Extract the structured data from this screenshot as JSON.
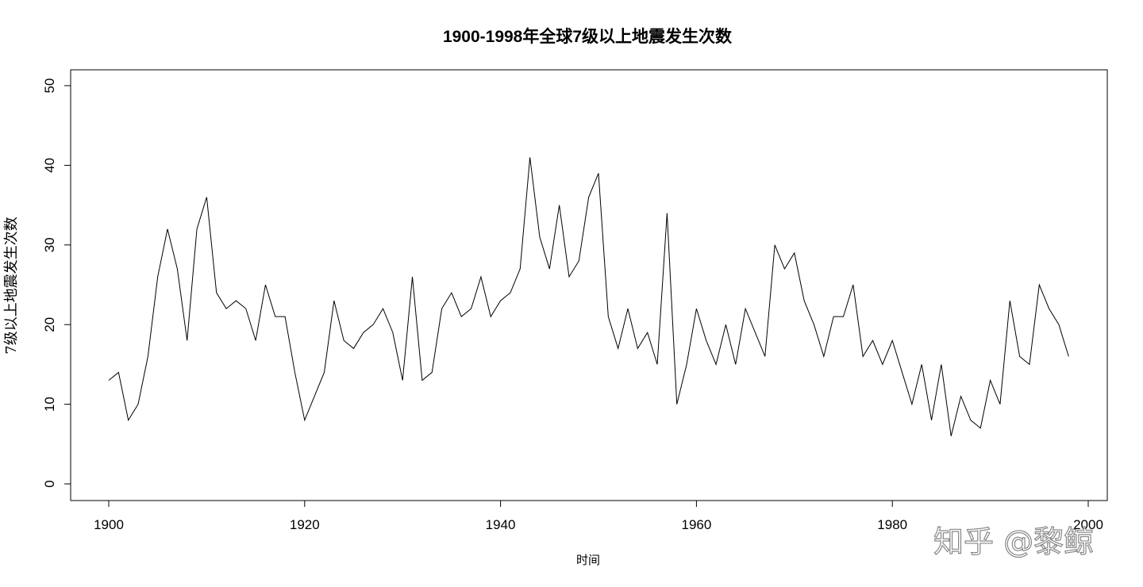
{
  "chart_data": {
    "type": "line",
    "title": "1900-1998年全球7级以上地震发生次数",
    "xlabel": "时间",
    "ylabel": "7级以上地震发生次数",
    "xlim": [
      1900,
      2000
    ],
    "ylim": [
      0,
      50
    ],
    "x_ticks": [
      "1900",
      "1920",
      "1940",
      "1960",
      "1980",
      "2000"
    ],
    "y_ticks": [
      "0",
      "10",
      "20",
      "30",
      "40",
      "50"
    ],
    "grid": false,
    "line_color": "#000000",
    "x_start": 1900,
    "series": [
      {
        "values": [
          13,
          14,
          8,
          10,
          16,
          26,
          32,
          27,
          18,
          32,
          36,
          24,
          22,
          23,
          22,
          18,
          25,
          21,
          21,
          14,
          8,
          11,
          14,
          23,
          18,
          17,
          19,
          20,
          22,
          19,
          13,
          26,
          13,
          14,
          22,
          24,
          21,
          22,
          26,
          21,
          23,
          24,
          27,
          41,
          31,
          27,
          35,
          26,
          28,
          36,
          39,
          21,
          17,
          22,
          17,
          19,
          15,
          34,
          10,
          15,
          22,
          18,
          15,
          20,
          15,
          22,
          19,
          16,
          30,
          27,
          29,
          23,
          20,
          16,
          21,
          21,
          25,
          16,
          18,
          15,
          18,
          14,
          10,
          15,
          8,
          15,
          6,
          11,
          8,
          7,
          13,
          10,
          23,
          16,
          15,
          25,
          22,
          20,
          16
        ]
      }
    ]
  },
  "watermark": "知乎 @黎鲸"
}
